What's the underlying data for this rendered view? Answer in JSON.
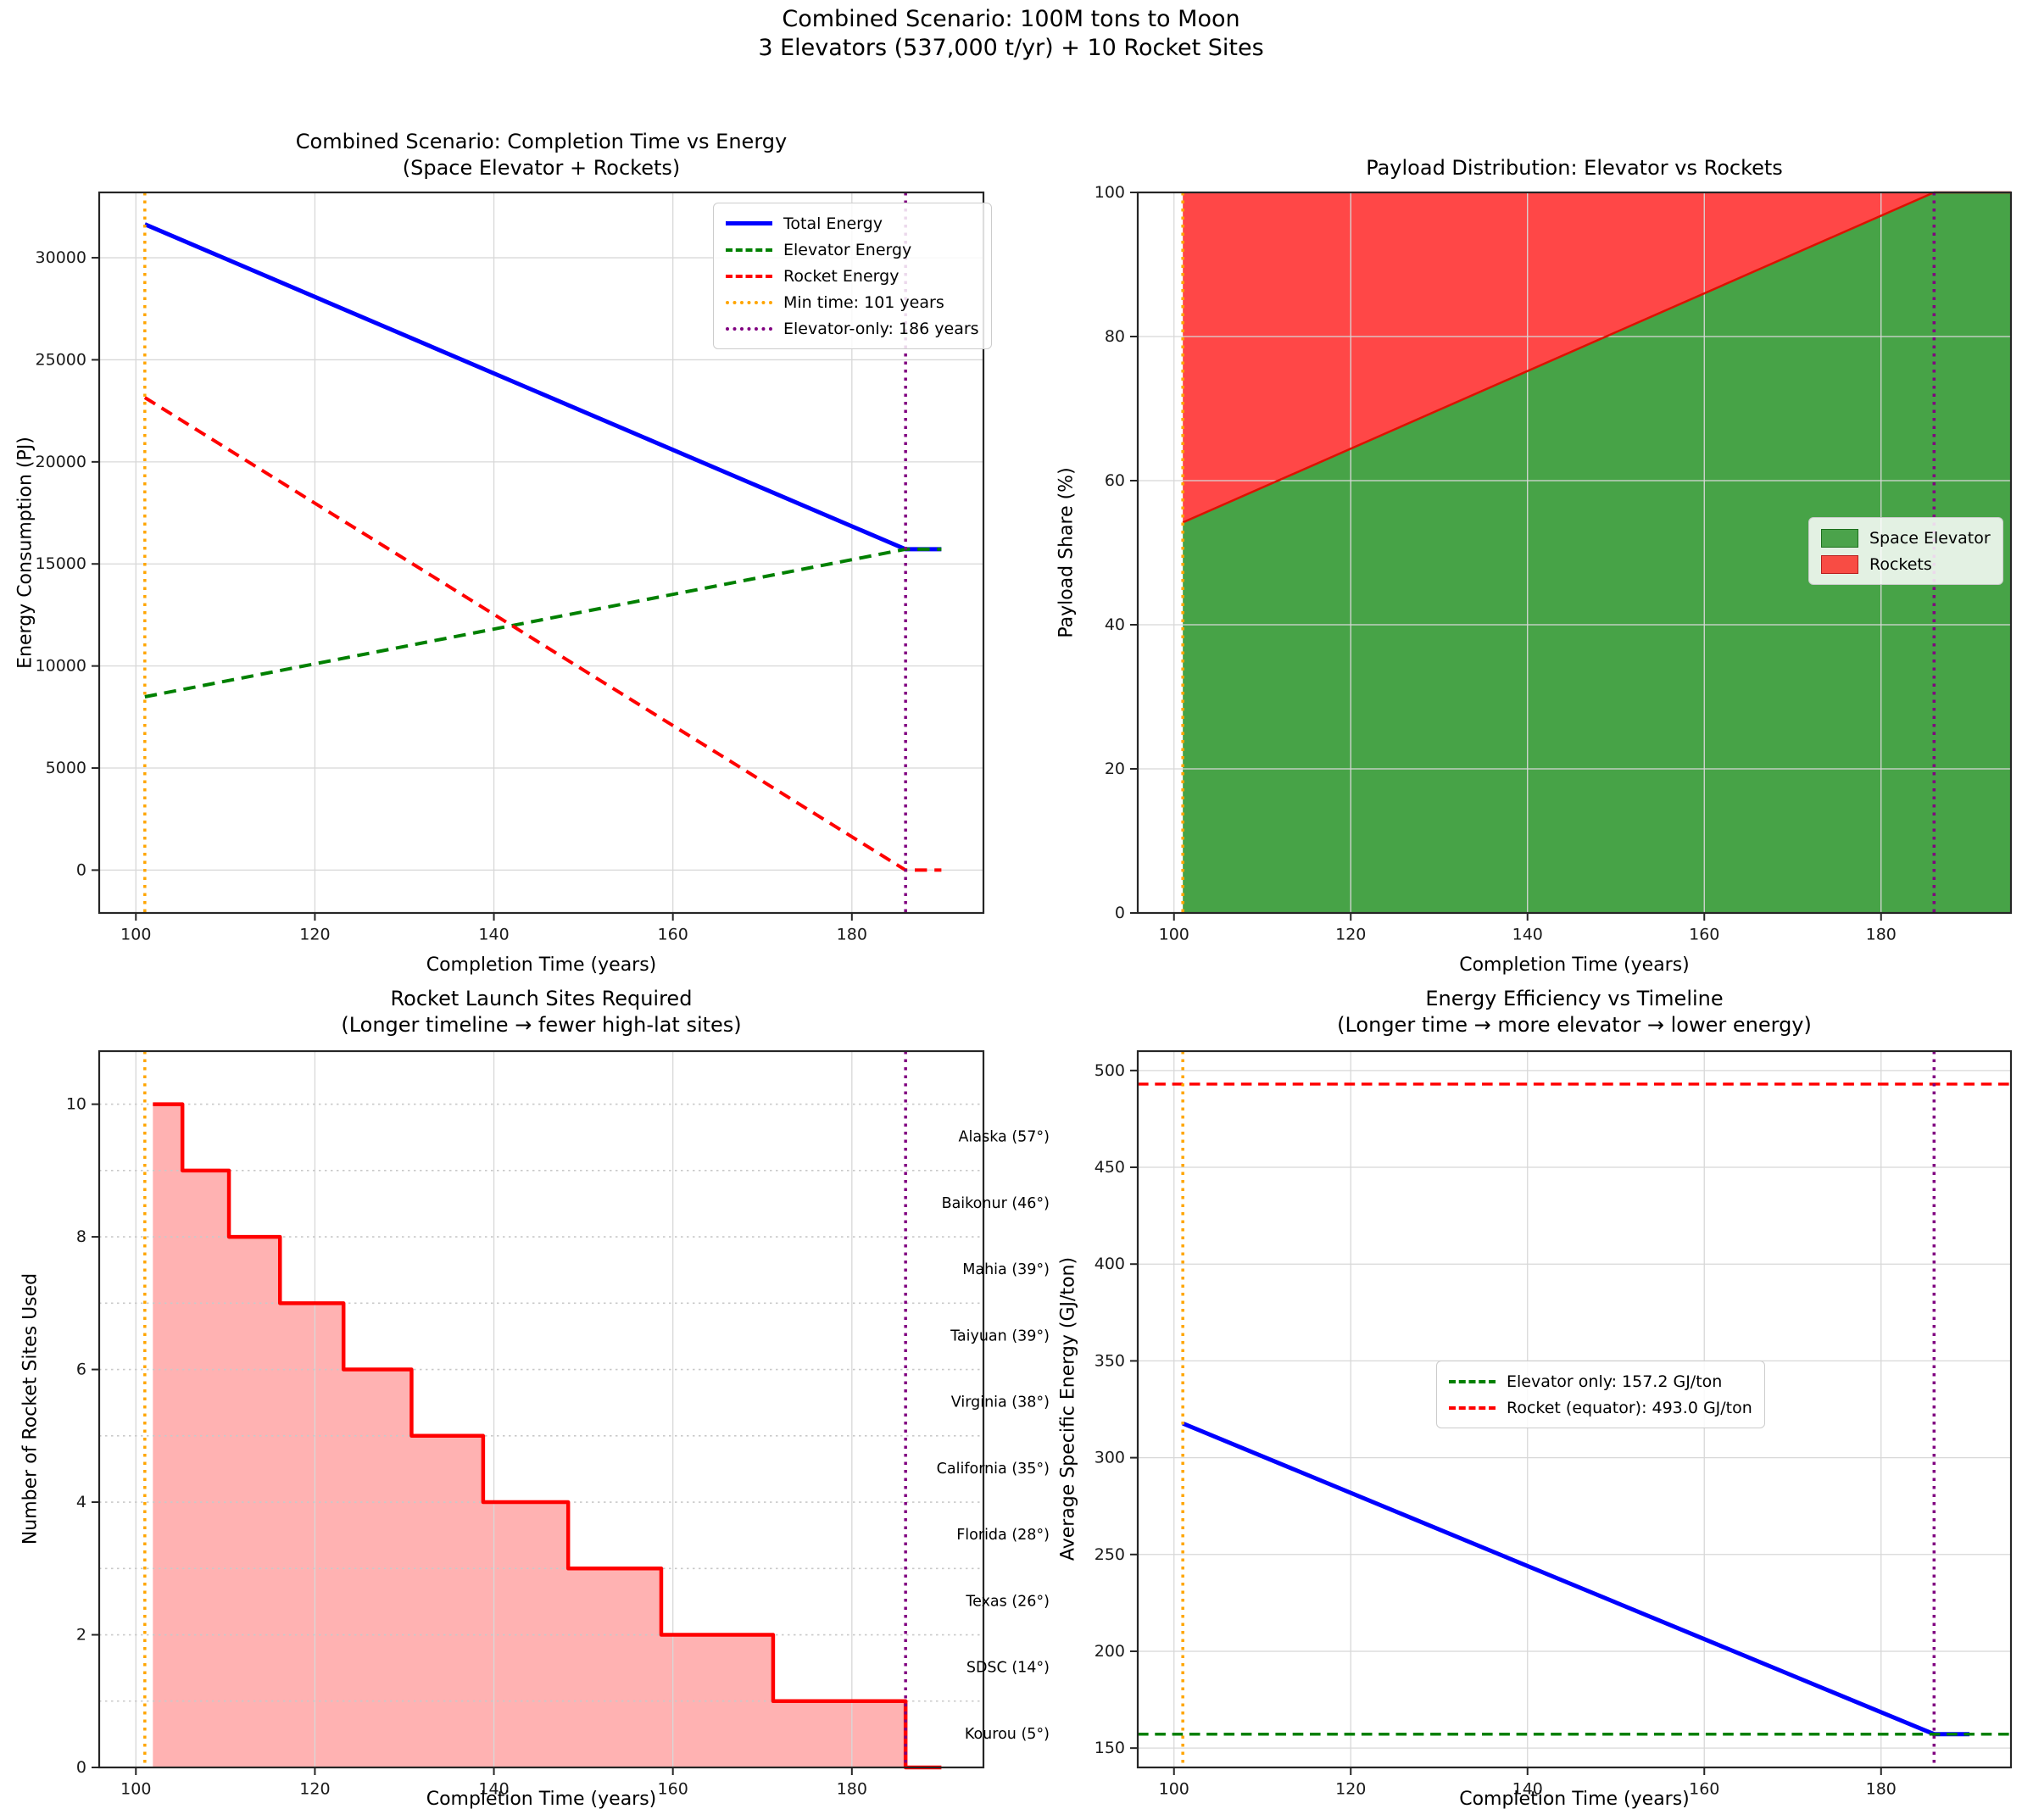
{
  "suptitle": {
    "line1": "Combined Scenario: 100M tons to Moon",
    "line2": "3 Elevators (537,000 t/yr) + 10 Rocket Sites"
  },
  "colors": {
    "total_energy": "#0000ff",
    "elevator_energy": "#008000",
    "rocket_energy": "#ff0000",
    "min_time_marker": "#ffa500",
    "elevator_only_marker": "#800080",
    "elevator_area": "rgba(0,128,0,0.72)",
    "rocket_area": "rgba(255,0,0,0.72)",
    "area_edge": "#dd1100",
    "step_fill": "rgba(255,0,0,0.3)",
    "grid": "#d8d8d8"
  },
  "chart_data": [
    {
      "id": "energy",
      "type": "line",
      "title_line1": "Combined Scenario: Completion Time vs Energy",
      "title_line2": "(Space Elevator + Rockets)",
      "xlabel": "Completion Time (years)",
      "ylabel": "Energy Consumption (PJ)",
      "xlim": [
        95.9,
        194.7
      ],
      "ylim": [
        -2100,
        33200
      ],
      "xticks": [
        100,
        120,
        140,
        160,
        180
      ],
      "yticks": [
        0,
        5000,
        10000,
        15000,
        20000,
        25000,
        30000
      ],
      "grid": "solid",
      "series": [
        {
          "name": "Total Energy",
          "color": "#0000ff",
          "style": "solid",
          "width": 5,
          "points": [
            [
              101,
              31640
            ],
            [
              186,
              15720
            ],
            [
              190,
              15720
            ]
          ]
        },
        {
          "name": "Elevator Energy",
          "color": "#008000",
          "style": "dashed",
          "width": 4,
          "points": [
            [
              101,
              8490
            ],
            [
              186,
              15720
            ],
            [
              190,
              15720
            ]
          ]
        },
        {
          "name": "Rocket Energy",
          "color": "#ff0000",
          "style": "dashed",
          "width": 4,
          "points": [
            [
              101,
              23150
            ],
            [
              186,
              0
            ],
            [
              190,
              0
            ]
          ]
        }
      ],
      "vlines": [
        {
          "label": "Min time: 101 years",
          "x": 101,
          "color": "#ffa500"
        },
        {
          "label": "Elevator-only: 186 years",
          "x": 186,
          "color": "#800080"
        }
      ],
      "legend": [
        {
          "label": "Total Energy",
          "swatch": "line",
          "style": "solid",
          "color": "#0000ff"
        },
        {
          "label": "Elevator Energy",
          "swatch": "line",
          "style": "dashed",
          "color": "#008000"
        },
        {
          "label": "Rocket Energy",
          "swatch": "line",
          "style": "dashed",
          "color": "#ff0000"
        },
        {
          "label": "Min time: 101 years",
          "swatch": "line",
          "style": "dotted",
          "color": "#ffa500"
        },
        {
          "label": "Elevator-only: 186 years",
          "swatch": "line",
          "style": "dotted",
          "color": "#800080"
        }
      ]
    },
    {
      "id": "payload",
      "type": "stacked_area",
      "title_line1": "Payload Distribution: Elevator vs Rockets",
      "title_line2": "",
      "xlabel": "Completion Time (years)",
      "ylabel": "Payload Share (%)",
      "xlim": [
        95.9,
        194.7
      ],
      "ylim": [
        0,
        100
      ],
      "xticks": [
        100,
        120,
        140,
        160,
        180
      ],
      "yticks": [
        0,
        20,
        40,
        60,
        80,
        100
      ],
      "grid": "solid",
      "x_start": 101,
      "boundary": [
        [
          101,
          54.2
        ],
        [
          186,
          100
        ],
        [
          194.7,
          100
        ]
      ],
      "fill_below": {
        "name": "Space Elevator",
        "color": "rgba(0,128,0,0.72)"
      },
      "fill_above": {
        "name": "Rockets",
        "color": "rgba(255,0,0,0.72)"
      },
      "edge_color": "#dd1100",
      "vlines": [
        {
          "label": "Min time: 101 years",
          "x": 101,
          "color": "#ffa500"
        },
        {
          "label": "Elevator-only: 186 years",
          "x": 186,
          "color": "#800080"
        }
      ],
      "legend": [
        {
          "label": "Space Elevator",
          "swatch": "patch",
          "color": "#4ba34b",
          "border": "#1b6e1b"
        },
        {
          "label": "Rockets",
          "swatch": "patch",
          "color": "#f84c44",
          "border": "#b71c1c"
        }
      ]
    },
    {
      "id": "sites",
      "type": "step",
      "title_line1": "Rocket Launch Sites Required",
      "title_line2": "(Longer timeline → fewer high-lat sites)",
      "xlabel": "Completion Time (years)",
      "ylabel": "Number of Rocket Sites Used",
      "xlim": [
        95.9,
        194.7
      ],
      "ylim": [
        0,
        10.8
      ],
      "xticks": [
        100,
        120,
        140,
        160,
        180
      ],
      "yticks": [
        0,
        2,
        4,
        6,
        8,
        10
      ],
      "grid": "mixed",
      "grid_levels": [
        1,
        2,
        3,
        4,
        5,
        6,
        7,
        8,
        9,
        10
      ],
      "step_x": [
        101.9,
        105.2,
        110.4,
        116.1,
        123.2,
        130.8,
        138.8,
        148.3,
        158.7,
        171.2,
        186,
        190
      ],
      "step_y": [
        10,
        9,
        8,
        7,
        6,
        5,
        4,
        3,
        2,
        1,
        0
      ],
      "line_color": "#ff0000",
      "line_width": 4.5,
      "fill_color": "rgba(255,0,0,0.3)",
      "vlines": [
        {
          "label": "Min time: 101 years",
          "x": 101,
          "color": "#ffa500"
        },
        {
          "label": "Elevator-only: 186 years",
          "x": 186,
          "color": "#800080"
        }
      ],
      "sites": [
        {
          "label": "Alaska (57°)",
          "level": 9.5
        },
        {
          "label": "Baikonur (46°)",
          "level": 8.5
        },
        {
          "label": "Mahia (39°)",
          "level": 7.5
        },
        {
          "label": "Taiyuan (39°)",
          "level": 6.5
        },
        {
          "label": "Virginia (38°)",
          "level": 5.5
        },
        {
          "label": "California (35°)",
          "level": 4.5
        },
        {
          "label": "Florida (28°)",
          "level": 3.5
        },
        {
          "label": "Texas (26°)",
          "level": 2.5
        },
        {
          "label": "SDSC (14°)",
          "level": 1.5
        },
        {
          "label": "Kourou (5°)",
          "level": 0.5
        }
      ],
      "legend": []
    },
    {
      "id": "efficiency",
      "type": "line",
      "title_line1": "Energy Efficiency vs Timeline",
      "title_line2": "(Longer time → more elevator → lower energy)",
      "xlabel": "Completion Time (years)",
      "ylabel": "Average Specific Energy (GJ/ton)",
      "xlim": [
        95.9,
        194.7
      ],
      "ylim": [
        140,
        510
      ],
      "xticks": [
        100,
        120,
        140,
        160,
        180
      ],
      "yticks": [
        150,
        200,
        250,
        300,
        350,
        400,
        450,
        500
      ],
      "grid": "solid",
      "series": [
        {
          "name": "Combined scenario",
          "color": "#0000ff",
          "style": "solid",
          "width": 5,
          "points": [
            [
              101,
              317.7
            ],
            [
              186,
              157.2
            ],
            [
              190,
              157.2
            ]
          ]
        }
      ],
      "hlines": [
        {
          "label": "Elevator only: 157.2 GJ/ton",
          "y": 157.2,
          "color": "#008000"
        },
        {
          "label": "Rocket (equator): 493.0 GJ/ton",
          "y": 493.0,
          "color": "#ff0000"
        }
      ],
      "vlines": [
        {
          "label": "Min time: 101 years",
          "x": 101,
          "color": "#ffa500"
        },
        {
          "label": "Elevator-only: 186 years",
          "x": 186,
          "color": "#800080"
        }
      ],
      "legend": [
        {
          "label": "Elevator only: 157.2 GJ/ton",
          "swatch": "line",
          "style": "dashed",
          "color": "#008000"
        },
        {
          "label": "Rocket (equator): 493.0 GJ/ton",
          "swatch": "line",
          "style": "dashed",
          "color": "#ff0000"
        }
      ]
    }
  ]
}
